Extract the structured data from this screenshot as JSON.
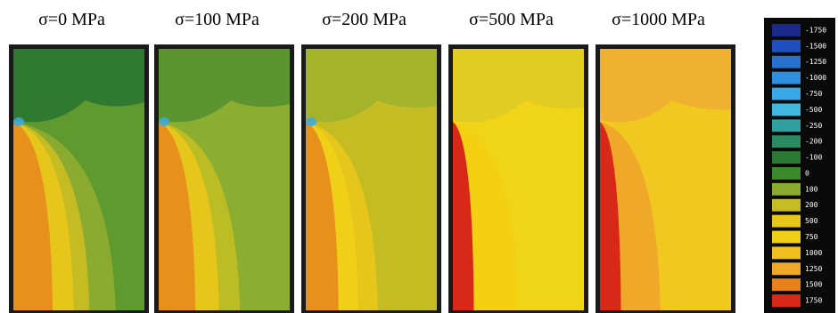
{
  "panels": [
    {
      "title": "σ=0 MPa",
      "top": "#2f7a30",
      "bg": "#5f9a2e",
      "bands": [
        [
          "#8aaa30",
          0.78
        ],
        [
          "#c4bc22",
          0.58
        ],
        [
          "#e6c61a",
          0.46
        ],
        [
          "#e8901c",
          0.3
        ]
      ]
    },
    {
      "title": "σ=100 MPa",
      "top": "#5c9430",
      "bg": "#8cae30",
      "bands": [
        [
          "#bcbc24",
          0.62
        ],
        [
          "#e6c61a",
          0.46
        ],
        [
          "#e8901c",
          0.28
        ]
      ]
    },
    {
      "title": "σ=200 MPa",
      "top": "#a4b42a",
      "bg": "#c4bc22",
      "bands": [
        [
          "#e6c61a",
          0.55
        ],
        [
          "#f0d016",
          0.4
        ],
        [
          "#e8901c",
          0.25
        ]
      ]
    },
    {
      "title": "σ=500 MPa",
      "top": "#e2cc24",
      "bg": "#f0d418",
      "bands": [
        [
          "#f4d012",
          0.5
        ],
        [
          "#d82818",
          0.16
        ]
      ]
    },
    {
      "title": "σ=1000 MPa",
      "top": "#f0b030",
      "bg": "#f0c820",
      "bands": [
        [
          "#f0a828",
          0.46
        ],
        [
          "#d82818",
          0.16
        ]
      ]
    }
  ],
  "legend": [
    {
      "label": "-1750",
      "color": "#1a2a8c"
    },
    {
      "label": "-1500",
      "color": "#2050c0"
    },
    {
      "label": "-1250",
      "color": "#2870d0"
    },
    {
      "label": "-1000",
      "color": "#3090e0"
    },
    {
      "label": "-750",
      "color": "#38a8e8"
    },
    {
      "label": "-500",
      "color": "#40b8e0"
    },
    {
      "label": "-250",
      "color": "#30a0a0"
    },
    {
      "label": "-200",
      "color": "#2a8a60"
    },
    {
      "label": "-100",
      "color": "#2a7a34"
    },
    {
      "label": "0",
      "color": "#3a8a2c"
    },
    {
      "label": "100",
      "color": "#8aaa30"
    },
    {
      "label": "200",
      "color": "#c4bc22"
    },
    {
      "label": "500",
      "color": "#e6c61a"
    },
    {
      "label": "750",
      "color": "#f0d016"
    },
    {
      "label": "1000",
      "color": "#f0c020"
    },
    {
      "label": "1250",
      "color": "#f0a828"
    },
    {
      "label": "1500",
      "color": "#e8801c"
    },
    {
      "label": "1750",
      "color": "#d82818"
    }
  ]
}
